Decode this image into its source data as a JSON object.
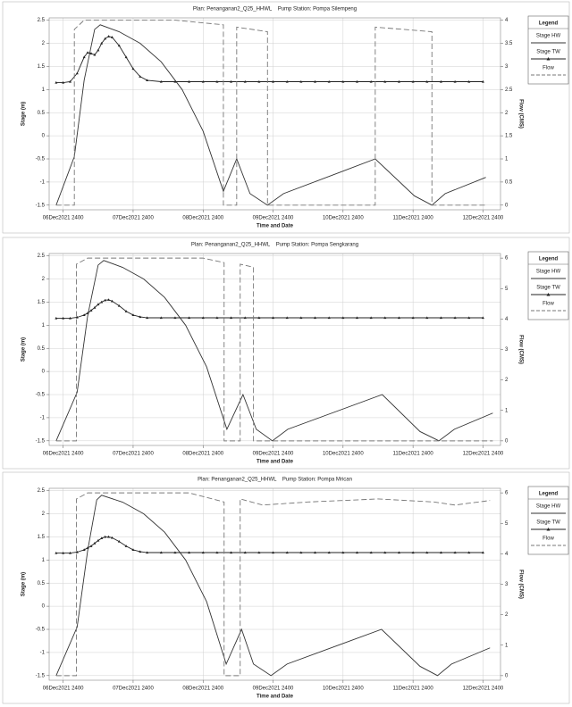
{
  "chart_data": [
    {
      "type": "line",
      "title": "Plan: Penanganan2_Q25_HHWL    Pump Station: Pompa Silempeng",
      "x_label": "Time and Date",
      "y_label": "Stage (m)",
      "y2_label": "Flow (CMS)",
      "legend_title": "Legend",
      "legend": "right",
      "grid": true,
      "xlim": [
        -0.2,
        6.25
      ],
      "xticks": [
        {
          "value": 0,
          "label": "06Dec2021 2400"
        },
        {
          "value": 1,
          "label": "07Dec2021 2400"
        },
        {
          "value": 2,
          "label": "08Dec2021 2400"
        },
        {
          "value": 3,
          "label": "09Dec2021 2400"
        },
        {
          "value": 4,
          "label": "10Dec2021 2400"
        },
        {
          "value": 5,
          "label": "11Dec2021 2400"
        },
        {
          "value": 6,
          "label": "12Dec2021 2400"
        }
      ],
      "ylim": [
        -1.6,
        2.55
      ],
      "yticks": [
        -1.5,
        -1,
        -0.5,
        0,
        0.5,
        1,
        1.5,
        2,
        2.5
      ],
      "y2lim": [
        -0.1,
        4.05
      ],
      "y2ticks": [
        0,
        0.5,
        1,
        1.5,
        2,
        2.5,
        3,
        3.5,
        4
      ],
      "series": [
        {
          "name": "Stage HW",
          "color": "#333333",
          "dash": false,
          "x": [
            -0.1,
            0.16,
            0.3,
            0.45,
            0.53,
            0.8,
            1.1,
            1.4,
            1.7,
            2.0,
            2.29,
            2.48,
            2.67,
            2.92,
            3.15,
            4.46,
            5.02,
            5.27,
            5.46,
            6.04
          ],
          "values": [
            -1.5,
            -0.45,
            1.2,
            2.3,
            2.4,
            2.25,
            2.0,
            1.6,
            1.0,
            0.1,
            -1.2,
            -0.5,
            -1.25,
            -1.5,
            -1.25,
            -0.5,
            -1.3,
            -1.5,
            -1.25,
            -0.9
          ]
        },
        {
          "name": "Stage TW",
          "color": "#222222",
          "dash": false,
          "marker": "triangle",
          "x": [
            -0.1,
            0,
            0.1,
            0.2,
            0.3,
            0.35,
            0.4,
            0.45,
            0.5,
            0.55,
            0.6,
            0.65,
            0.7,
            0.8,
            0.9,
            1.0,
            1.1,
            1.2,
            1.4,
            1.6,
            1.8,
            2.0,
            2.2,
            2.4,
            2.6,
            2.8,
            3.0,
            3.2,
            3.4,
            3.6,
            3.8,
            4.0,
            4.2,
            4.4,
            4.6,
            4.8,
            5.0,
            5.2,
            5.4,
            5.6,
            5.8,
            6.0
          ],
          "values": [
            1.15,
            1.15,
            1.17,
            1.35,
            1.7,
            1.8,
            1.78,
            1.75,
            1.85,
            2.0,
            2.1,
            2.15,
            2.13,
            1.95,
            1.7,
            1.45,
            1.28,
            1.2,
            1.17,
            1.17,
            1.17,
            1.17,
            1.17,
            1.17,
            1.17,
            1.17,
            1.17,
            1.17,
            1.17,
            1.17,
            1.17,
            1.17,
            1.17,
            1.17,
            1.17,
            1.17,
            1.17,
            1.17,
            1.17,
            1.17,
            1.17,
            1.17
          ]
        },
        {
          "name": "Flow",
          "color": "#777777",
          "dash": true,
          "axis": "y2",
          "x": [
            -0.1,
            0.16,
            0.16,
            0.3,
            1.6,
            2.29,
            2.29,
            2.48,
            2.48,
            2.92,
            2.92,
            4.46,
            4.46,
            5.27,
            5.27,
            6.04
          ],
          "values": [
            0,
            0,
            3.8,
            4.0,
            4.0,
            3.9,
            0,
            0,
            3.85,
            3.75,
            0,
            0,
            3.85,
            3.75,
            0,
            0
          ]
        }
      ]
    },
    {
      "type": "line",
      "title": "Plan: Penanganan2_Q25_HHWL    Pump Station: Pompa Sengkarang",
      "x_label": "Time and Date",
      "y_label": "Stage (m)",
      "y2_label": "Flow (CMS)",
      "legend_title": "Legend",
      "legend": "right",
      "grid": true,
      "xlim": [
        -0.2,
        6.25
      ],
      "xticks": [
        {
          "value": 0,
          "label": "06Dec2021 2400"
        },
        {
          "value": 1,
          "label": "07Dec2021 2400"
        },
        {
          "value": 2,
          "label": "08Dec2021 2400"
        },
        {
          "value": 3,
          "label": "09Dec2021 2400"
        },
        {
          "value": 4,
          "label": "10Dec2021 2400"
        },
        {
          "value": 5,
          "label": "11Dec2021 2400"
        },
        {
          "value": 6,
          "label": "12Dec2021 2400"
        }
      ],
      "ylim": [
        -1.6,
        2.55
      ],
      "yticks": [
        -1.5,
        -1,
        -0.5,
        0,
        0.5,
        1,
        1.5,
        2,
        2.5
      ],
      "y2lim": [
        -0.15,
        6.15
      ],
      "y2ticks": [
        0,
        1,
        2,
        3,
        4,
        5,
        6
      ],
      "series": [
        {
          "name": "Stage HW",
          "color": "#333333",
          "dash": false,
          "x": [
            -0.1,
            0.2,
            0.35,
            0.5,
            0.58,
            0.85,
            1.15,
            1.45,
            1.75,
            2.05,
            2.34,
            2.57,
            2.76,
            2.99,
            3.21,
            4.56,
            5.1,
            5.37,
            5.59,
            6.14
          ],
          "values": [
            -1.5,
            -0.45,
            1.2,
            2.3,
            2.4,
            2.25,
            2.0,
            1.6,
            1.0,
            0.1,
            -1.25,
            -0.5,
            -1.25,
            -1.5,
            -1.25,
            -0.5,
            -1.3,
            -1.5,
            -1.25,
            -0.9
          ]
        },
        {
          "name": "Stage TW",
          "color": "#222222",
          "dash": false,
          "marker": "triangle",
          "x": [
            -0.1,
            0,
            0.1,
            0.2,
            0.3,
            0.35,
            0.4,
            0.45,
            0.5,
            0.55,
            0.6,
            0.65,
            0.7,
            0.8,
            0.9,
            1.0,
            1.1,
            1.2,
            1.4,
            1.6,
            1.8,
            2.0,
            2.2,
            2.4,
            2.6,
            2.8,
            3.0,
            3.2,
            3.4,
            3.6,
            3.8,
            4.0,
            4.2,
            4.4,
            4.6,
            4.8,
            5.0,
            5.2,
            5.4,
            5.6,
            5.8,
            6.0
          ],
          "values": [
            1.15,
            1.15,
            1.15,
            1.17,
            1.22,
            1.26,
            1.32,
            1.38,
            1.45,
            1.5,
            1.54,
            1.55,
            1.52,
            1.42,
            1.3,
            1.22,
            1.18,
            1.16,
            1.16,
            1.16,
            1.16,
            1.16,
            1.16,
            1.16,
            1.16,
            1.16,
            1.16,
            1.16,
            1.16,
            1.16,
            1.16,
            1.16,
            1.16,
            1.16,
            1.16,
            1.16,
            1.16,
            1.16,
            1.16,
            1.16,
            1.16,
            1.16
          ]
        },
        {
          "name": "Flow",
          "color": "#777777",
          "dash": true,
          "axis": "y2",
          "x": [
            -0.1,
            0.19,
            0.19,
            0.35,
            2.0,
            2.3,
            2.3,
            2.53,
            2.53,
            2.72,
            2.72,
            6.14
          ],
          "values": [
            0,
            0,
            5.8,
            6.0,
            6.0,
            5.85,
            0,
            0,
            5.8,
            5.7,
            0,
            0
          ]
        }
      ]
    },
    {
      "type": "line",
      "title": "Plan: Penanganan2_Q25_HHWL    Pump Station: Pompa Mrican",
      "x_label": "Time and Date",
      "y_label": "Stage (m)",
      "y2_label": "Flow (CMS)",
      "legend_title": "Legend",
      "legend": "right",
      "grid": true,
      "xlim": [
        -0.2,
        6.25
      ],
      "xticks": [
        {
          "value": 0,
          "label": "06Dec2021 2400"
        },
        {
          "value": 1,
          "label": "07Dec2021 2400"
        },
        {
          "value": 2,
          "label": "08Dec2021 2400"
        },
        {
          "value": 3,
          "label": "09Dec2021 2400"
        },
        {
          "value": 4,
          "label": "10Dec2021 2400"
        },
        {
          "value": 5,
          "label": "11Dec2021 2400"
        },
        {
          "value": 6,
          "label": "12Dec2021 2400"
        }
      ],
      "ylim": [
        -1.6,
        2.55
      ],
      "yticks": [
        -1.5,
        -1,
        -0.5,
        0,
        0.5,
        1,
        1.5,
        2,
        2.5
      ],
      "y2lim": [
        -0.15,
        6.15
      ],
      "y2ticks": [
        0,
        1,
        2,
        3,
        4,
        5,
        6
      ],
      "series": [
        {
          "name": "Stage HW",
          "color": "#333333",
          "dash": false,
          "x": [
            -0.1,
            0.2,
            0.35,
            0.48,
            0.55,
            0.85,
            1.15,
            1.45,
            1.75,
            2.05,
            2.33,
            2.55,
            2.72,
            2.97,
            3.2,
            4.55,
            5.1,
            5.35,
            5.55,
            6.1
          ],
          "values": [
            -1.5,
            -0.45,
            1.2,
            2.3,
            2.4,
            2.25,
            2.0,
            1.6,
            1.0,
            0.1,
            -1.25,
            -0.5,
            -1.25,
            -1.5,
            -1.25,
            -0.5,
            -1.3,
            -1.5,
            -1.25,
            -0.9
          ]
        },
        {
          "name": "Stage TW",
          "color": "#222222",
          "dash": false,
          "marker": "triangle",
          "x": [
            -0.1,
            0,
            0.1,
            0.2,
            0.3,
            0.35,
            0.4,
            0.45,
            0.5,
            0.55,
            0.6,
            0.65,
            0.7,
            0.8,
            0.9,
            1.0,
            1.1,
            1.2,
            1.4,
            1.6,
            1.8,
            2.0,
            2.2,
            2.4,
            2.6,
            2.8,
            3.0,
            3.2,
            3.4,
            3.6,
            3.8,
            4.0,
            4.2,
            4.4,
            4.6,
            4.8,
            5.0,
            5.2,
            5.4,
            5.6,
            5.8,
            6.0
          ],
          "values": [
            1.15,
            1.15,
            1.15,
            1.17,
            1.22,
            1.26,
            1.3,
            1.36,
            1.42,
            1.47,
            1.5,
            1.5,
            1.48,
            1.4,
            1.3,
            1.22,
            1.18,
            1.16,
            1.16,
            1.16,
            1.16,
            1.16,
            1.16,
            1.16,
            1.16,
            1.16,
            1.16,
            1.16,
            1.16,
            1.16,
            1.16,
            1.16,
            1.16,
            1.16,
            1.16,
            1.16,
            1.16,
            1.16,
            1.16,
            1.16,
            1.16,
            1.16
          ]
        },
        {
          "name": "Flow",
          "color": "#777777",
          "dash": true,
          "axis": "y2",
          "x": [
            -0.1,
            0.19,
            0.19,
            0.35,
            1.8,
            2.3,
            2.3,
            2.53,
            2.53,
            2.85,
            3.5,
            4.5,
            5.3,
            5.6,
            6.1
          ],
          "values": [
            0,
            0,
            5.8,
            6.0,
            6.0,
            5.7,
            0,
            0,
            5.8,
            5.6,
            5.7,
            5.8,
            5.7,
            5.6,
            5.75
          ]
        }
      ]
    }
  ]
}
